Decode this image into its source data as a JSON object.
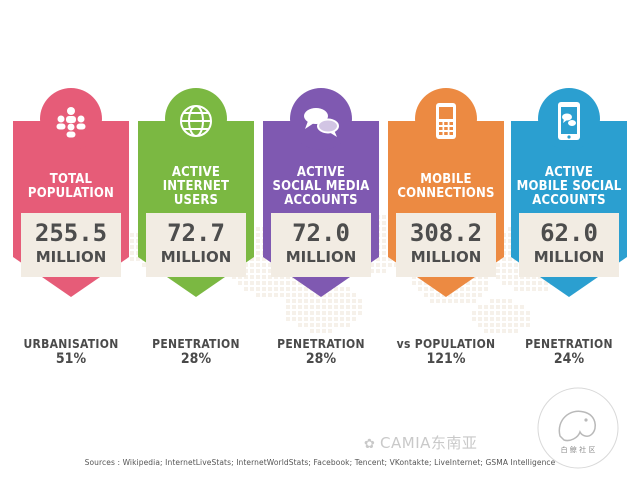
{
  "cards": [
    {
      "color": "#e65c78",
      "dark": "#c9435f",
      "icon": "people-icon",
      "title": "TOTAL\nPOPULATION",
      "value": "255.5",
      "unit": "MILLION"
    },
    {
      "color": "#7bb842",
      "dark": "#5d9427",
      "icon": "globe-icon",
      "title": "ACTIVE\nINTERNET USERS",
      "value": "72.7",
      "unit": "MILLION"
    },
    {
      "color": "#7f59b1",
      "dark": "#5f3d8f",
      "icon": "chat-bubbles-icon",
      "title": "ACTIVE\nSOCIAL MEDIA\nACCOUNTS",
      "value": "72.0",
      "unit": "MILLION"
    },
    {
      "color": "#ec8a42",
      "dark": "#c96a26",
      "icon": "mobile-phone-icon",
      "title": "MOBILE\nCONNECTIONS",
      "value": "308.2",
      "unit": "MILLION"
    },
    {
      "color": "#2b9fd0",
      "dark": "#1a7fae",
      "icon": "smartphone-chat-icon",
      "title": "ACTIVE\nMOBILE SOCIAL\nACCOUNTS",
      "value": "62.0",
      "unit": "MILLION"
    }
  ],
  "stats": [
    {
      "label": "URBANISATION",
      "value": "51%"
    },
    {
      "label": "PENETRATION",
      "value": "28%"
    },
    {
      "label": "PENETRATION",
      "value": "28%"
    },
    {
      "label": "vs POPULATION",
      "value": "121%"
    },
    {
      "label": "PENETRATION",
      "value": "24%"
    }
  ],
  "watermark": {
    "text": "CAMIA东南亚",
    "logo_text": "白  鲸  社  区"
  },
  "sources": "Sources : Wikipedia; InternetLiveStats; InternetWorldStats; Facebook; Tencent; VKontakte; LiveInternet; GSMA Intelligence"
}
